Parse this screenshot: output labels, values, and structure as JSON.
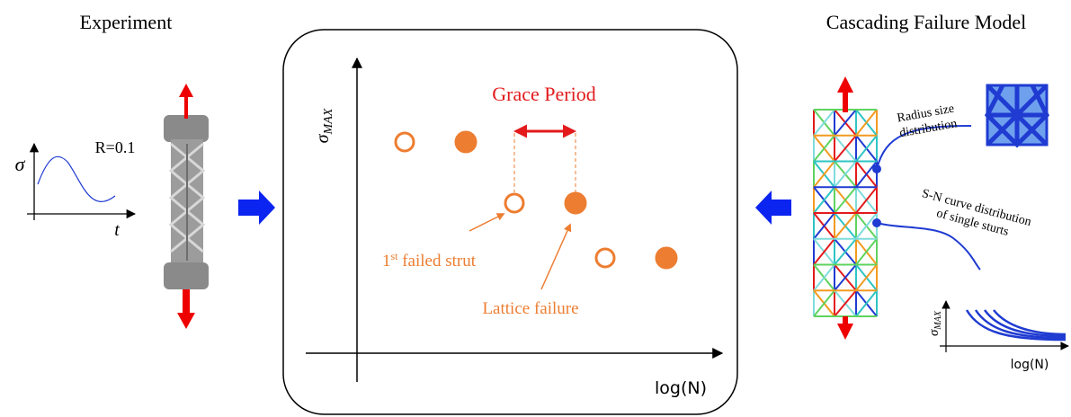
{
  "left": {
    "title": "Experiment",
    "ratio": "R=0.1",
    "y_axis": "σ",
    "x_axis": "t"
  },
  "center": {
    "y_axis": {
      "symbol": "σ",
      "subscript": "MAX"
    },
    "x_axis": "log(N)",
    "grace": "Grace Period",
    "first_failed": {
      "number": "1",
      "superscript": "st",
      "text": " failed strut"
    },
    "lattice_failure": "Lattice failure"
  },
  "right": {
    "title": "Cascading Failure Model",
    "radius": [
      "Radius size",
      "distribution"
    ],
    "sn": [
      "S-N curve distribution",
      "of single sturts"
    ],
    "plot": {
      "y_axis": {
        "symbol": "σ",
        "subscript": "MAX"
      },
      "x_axis": "log(N)"
    }
  }
}
